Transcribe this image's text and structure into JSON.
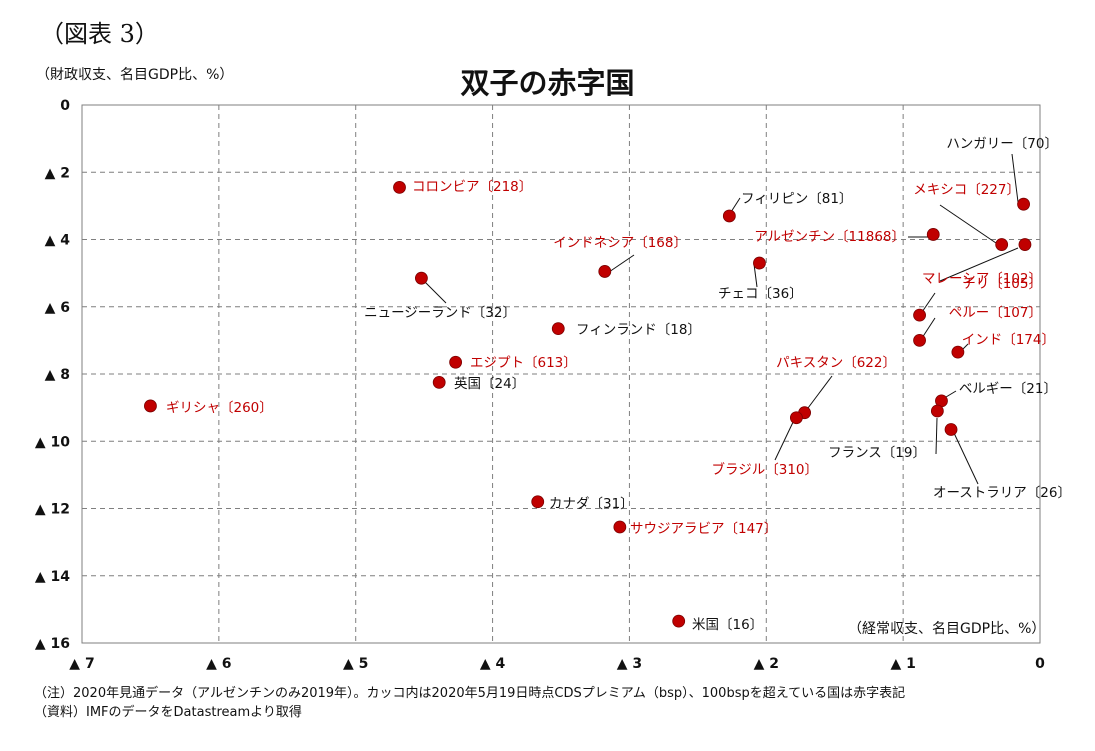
{
  "figure_label": "（図表 3）",
  "notes": [
    "（注）2020年見通データ（アルゼンチンのみ2019年）。カッコ内は2020年5月19日時点CDSプレミアム（bsp）、100bspを超えている国は赤字表記",
    "（資料）IMFのデータをDatastreamより取得"
  ],
  "colors": {
    "red": "#c00000",
    "black": "#111111",
    "grid": "#7f7f7f"
  },
  "chart_data": {
    "type": "scatter",
    "title": "双子の赤字国",
    "xlabel": "（経常収支、名目GDP比、%）",
    "ylabel": "（財政収支、名目GDP比、%）",
    "x_reversed": true,
    "y_reversed": true,
    "xlim": [
      0,
      7
    ],
    "ylim": [
      0,
      16
    ],
    "grid": true,
    "x_ticks": [
      {
        "value": 7,
        "label": "▲ 7"
      },
      {
        "value": 6,
        "label": "▲ 6"
      },
      {
        "value": 5,
        "label": "▲ 5"
      },
      {
        "value": 4,
        "label": "▲ 4"
      },
      {
        "value": 3,
        "label": "▲ 3"
      },
      {
        "value": 2,
        "label": "▲ 2"
      },
      {
        "value": 1,
        "label": "▲ 1"
      },
      {
        "value": 0,
        "label": "0"
      }
    ],
    "y_ticks": [
      {
        "value": 0,
        "label": "0"
      },
      {
        "value": 2,
        "label": "▲ 2"
      },
      {
        "value": 4,
        "label": "▲ 4"
      },
      {
        "value": 6,
        "label": "▲ 6"
      },
      {
        "value": 8,
        "label": "▲ 8"
      },
      {
        "value": 10,
        "label": "▲ 10"
      },
      {
        "value": 12,
        "label": "▲ 12"
      },
      {
        "value": 14,
        "label": "▲ 14"
      },
      {
        "value": 16,
        "label": "▲ 16"
      }
    ],
    "points": [
      {
        "label": "ハンガリー〔70〕",
        "x": 0.12,
        "y": 2.95,
        "red": false
      },
      {
        "label": "メキシコ〔227〕",
        "x": 0.28,
        "y": 4.15,
        "red": true
      },
      {
        "label": "アルゼンチン〔11868〕",
        "x": 0.78,
        "y": 3.85,
        "red": true
      },
      {
        "label": "マレーシア〔102〕",
        "x": 0.11,
        "y": 4.15,
        "red": true
      },
      {
        "label": "チリ〔105〕",
        "x": 0.88,
        "y": 6.25,
        "red": true
      },
      {
        "label": "ペルー〔107〕",
        "x": 0.88,
        "y": 7.0,
        "red": true
      },
      {
        "label": "インド〔174〕",
        "x": 0.6,
        "y": 7.35,
        "red": true
      },
      {
        "label": "ベルギー〔21〕",
        "x": 0.72,
        "y": 8.8,
        "red": false
      },
      {
        "label": "フランス〔19〕",
        "x": 0.75,
        "y": 9.1,
        "red": false
      },
      {
        "label": "オーストラリア〔26〕",
        "x": 0.65,
        "y": 9.65,
        "red": false
      },
      {
        "label": "パキスタン〔622〕",
        "x": 1.72,
        "y": 9.15,
        "red": true
      },
      {
        "label": "ブラジル〔310〕",
        "x": 1.78,
        "y": 9.3,
        "red": true
      },
      {
        "label": "フィリピン〔81〕",
        "x": 2.27,
        "y": 3.3,
        "red": false
      },
      {
        "label": "チェコ〔36〕",
        "x": 2.05,
        "y": 4.7,
        "red": false
      },
      {
        "label": "インドネシア〔168〕",
        "x": 3.18,
        "y": 4.95,
        "red": true
      },
      {
        "label": "フィンランド〔18〕",
        "x": 3.52,
        "y": 6.65,
        "red": false
      },
      {
        "label": "コロンビア〔218〕",
        "x": 4.68,
        "y": 2.45,
        "red": true
      },
      {
        "label": "ニュージーランド〔32〕",
        "x": 4.52,
        "y": 5.15,
        "red": false
      },
      {
        "label": "エジプト〔613〕",
        "x": 4.27,
        "y": 7.65,
        "red": true
      },
      {
        "label": "英国〔24〕",
        "x": 4.39,
        "y": 8.25,
        "red": false
      },
      {
        "label": "カナダ〔31〕",
        "x": 3.67,
        "y": 11.8,
        "red": false
      },
      {
        "label": "サウジアラビア〔147〕",
        "x": 3.07,
        "y": 12.55,
        "red": true
      },
      {
        "label": "米国〔16〕",
        "x": 2.64,
        "y": 15.35,
        "red": false
      },
      {
        "label": "ギリシャ〔260〕",
        "x": 6.5,
        "y": 8.95,
        "red": true
      }
    ]
  }
}
